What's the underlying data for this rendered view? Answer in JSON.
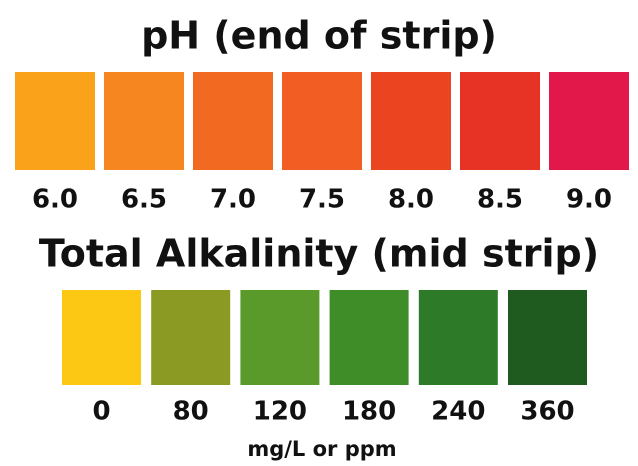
{
  "sections": [
    {
      "title": "pH (end of strip)",
      "swatches": [
        {
          "label": "6.0",
          "color": "#f9a21a"
        },
        {
          "label": "6.5",
          "color": "#f6861f"
        },
        {
          "label": "7.0",
          "color": "#f26a22"
        },
        {
          "label": "7.5",
          "color": "#f15d22"
        },
        {
          "label": "8.0",
          "color": "#ea4520"
        },
        {
          "label": "8.5",
          "color": "#e63325"
        },
        {
          "label": "9.0",
          "color": "#e2174a"
        }
      ]
    },
    {
      "title": "Total Alkalinity (mid strip)",
      "swatches": [
        {
          "label": "0",
          "color": "#fdc814"
        },
        {
          "label": "80",
          "color": "#8a9a22"
        },
        {
          "label": "120",
          "color": "#5a9a2a"
        },
        {
          "label": "180",
          "color": "#3f8d29"
        },
        {
          "label": "240",
          "color": "#2d7a28"
        },
        {
          "label": "360",
          "color": "#1f5a1e"
        }
      ],
      "unit": "mg/L or ppm"
    }
  ]
}
